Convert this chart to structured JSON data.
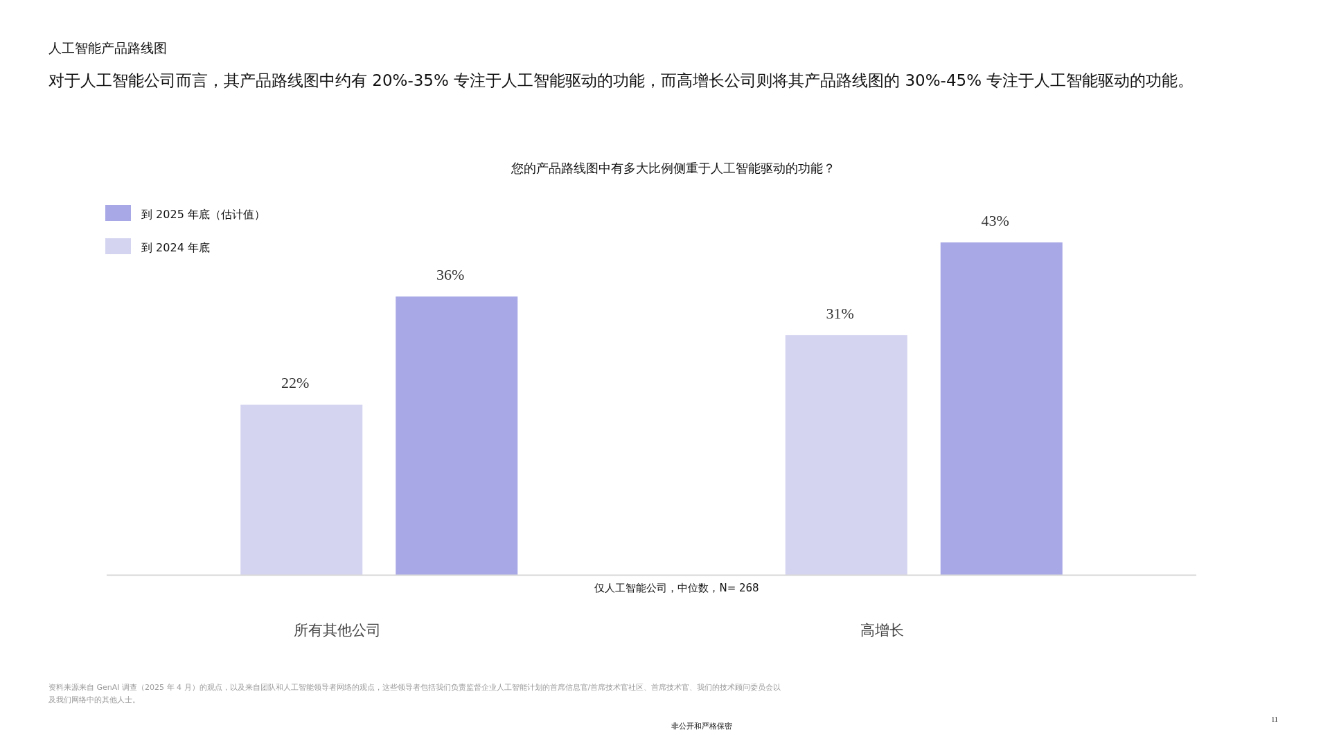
{
  "chart_data": {
    "type": "bar",
    "title": "对于人工智能公司而言，其产品路线图中约有 20%-35% 专注于人工智能驱动的功能，而高增长公司则将其产品路线图的 30%-45% 专注于人工智能驱动的功能。",
    "subtitle": "您的产品路线图中有多大比例侧重于人工智能驱动的功能？",
    "categories": [
      "所有其他公司",
      "高增长"
    ],
    "series": [
      {
        "name": "到 2024 年底",
        "color": "#d4d4f1",
        "values": [
          22,
          31
        ],
        "value_labels": [
          "22%",
          "31%"
        ]
      },
      {
        "name": "到 2025 年底（估计值）",
        "color": "#a9a8e6",
        "values": [
          36,
          43
        ],
        "value_labels": [
          "36%",
          "43%"
        ]
      }
    ],
    "legend": "top left",
    "annotations": [
      "人工智能产品路线图",
      "仅人工智能公司，中位数，N= 268",
      "资料来源来自 GenAI 调查（2025 年 4 月）的观点，以及来自团队和人工智能领导者网络的观点，这些领导者包括我们负责监督企业人工智能计划的首席信息官/首席技术官社区、首席技术官、我们的技术顾问委员会以及我们网络中的其他人士。",
      "非公开和严格保密",
      "11"
    ]
  }
}
